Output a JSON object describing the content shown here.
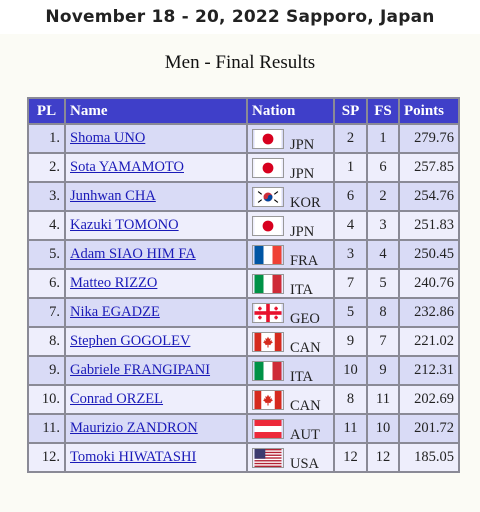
{
  "banner": {
    "text": "November 18 - 20, 2022  Sapporo, Japan"
  },
  "heading": "Men - Final Results",
  "columns": {
    "pl": "PL",
    "name": "Name",
    "nation": "Nation",
    "sp": "SP",
    "fs": "FS",
    "points": "Points"
  },
  "results": [
    {
      "pl": "1.",
      "name": "Shoma UNO",
      "nation": "JPN",
      "flag": "flag-jpn-icon",
      "sp": "2",
      "fs": "1",
      "points": "279.76"
    },
    {
      "pl": "2.",
      "name": "Sota YAMAMOTO",
      "nation": "JPN",
      "flag": "flag-jpn-icon",
      "sp": "1",
      "fs": "6",
      "points": "257.85"
    },
    {
      "pl": "3.",
      "name": "Junhwan CHA",
      "nation": "KOR",
      "flag": "flag-kor-icon",
      "sp": "6",
      "fs": "2",
      "points": "254.76"
    },
    {
      "pl": "4.",
      "name": "Kazuki TOMONO",
      "nation": "JPN",
      "flag": "flag-jpn-icon",
      "sp": "4",
      "fs": "3",
      "points": "251.83"
    },
    {
      "pl": "5.",
      "name": "Adam SIAO HIM FA",
      "nation": "FRA",
      "flag": "flag-fra-icon",
      "sp": "3",
      "fs": "4",
      "points": "250.45"
    },
    {
      "pl": "6.",
      "name": "Matteo RIZZO",
      "nation": "ITA",
      "flag": "flag-ita-icon",
      "sp": "7",
      "fs": "5",
      "points": "240.76"
    },
    {
      "pl": "7.",
      "name": "Nika EGADZE",
      "nation": "GEO",
      "flag": "flag-geo-icon",
      "sp": "5",
      "fs": "8",
      "points": "232.86"
    },
    {
      "pl": "8.",
      "name": "Stephen GOGOLEV",
      "nation": "CAN",
      "flag": "flag-can-icon",
      "sp": "9",
      "fs": "7",
      "points": "221.02"
    },
    {
      "pl": "9.",
      "name": "Gabriele FRANGIPANI",
      "nation": "ITA",
      "flag": "flag-ita-icon",
      "sp": "10",
      "fs": "9",
      "points": "212.31"
    },
    {
      "pl": "10.",
      "name": "Conrad ORZEL",
      "nation": "CAN",
      "flag": "flag-can-icon",
      "sp": "8",
      "fs": "11",
      "points": "202.69"
    },
    {
      "pl": "11.",
      "name": "Maurizio ZANDRON",
      "nation": "AUT",
      "flag": "flag-aut-icon",
      "sp": "11",
      "fs": "10",
      "points": "201.72"
    },
    {
      "pl": "12.",
      "name": "Tomoki HIWATASHI",
      "nation": "USA",
      "flag": "flag-usa-icon",
      "sp": "12",
      "fs": "12",
      "points": "185.05"
    }
  ],
  "colors": {
    "header_bg": "#3f3fc9",
    "row_odd": "#d9dbf6",
    "row_even": "#eeeefc",
    "link": "#1a1ab8"
  }
}
